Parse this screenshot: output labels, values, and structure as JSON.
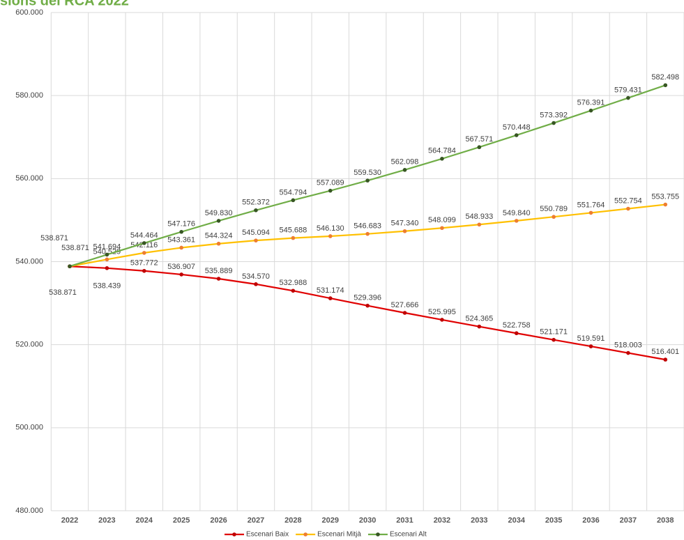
{
  "chart_data": {
    "type": "line",
    "title": "sions del RCA 2022",
    "categories": [
      "2022",
      "2023",
      "2024",
      "2025",
      "2026",
      "2027",
      "2028",
      "2029",
      "2030",
      "2031",
      "2032",
      "2033",
      "2034",
      "2035",
      "2036",
      "2037",
      "2038"
    ],
    "ylim": [
      480000,
      600000
    ],
    "yticks": [
      {
        "value": 480000,
        "label": "480.000"
      },
      {
        "value": 500000,
        "label": "500.000"
      },
      {
        "value": 520000,
        "label": "520.000"
      },
      {
        "value": 540000,
        "label": "540.000"
      },
      {
        "value": 560000,
        "label": "560.000"
      },
      {
        "value": 580000,
        "label": "580.000"
      },
      {
        "value": 600000,
        "label": "600.000"
      }
    ],
    "grid": true,
    "legend": "bottom",
    "series": [
      {
        "name": "Escenari Baix",
        "color": "#e00000",
        "marker_color": "#c00000",
        "values": [
          538871,
          538439,
          537772,
          536907,
          535889,
          534570,
          532988,
          531174,
          529396,
          527666,
          525995,
          524365,
          522758,
          521171,
          519591,
          518003,
          516401
        ],
        "value_labels": [
          "538.871",
          "538.439",
          "537.772",
          "536.907",
          "535.889",
          "534.570",
          "532.988",
          "531.174",
          "529.396",
          "527.666",
          "525.995",
          "524.365",
          "522.758",
          "521.171",
          "519.591",
          "518.003",
          "516.401"
        ]
      },
      {
        "name": "Escenari Mitjà",
        "color": "#ffc000",
        "marker_color": "#ed7d31",
        "values": [
          538871,
          540529,
          542116,
          543361,
          544324,
          545094,
          545688,
          546130,
          546683,
          547340,
          548099,
          548933,
          549840,
          550789,
          551764,
          552754,
          553755
        ],
        "value_labels": [
          "538.871",
          "540.529",
          "542.116",
          "543.361",
          "544.324",
          "545.094",
          "545.688",
          "546.130",
          "546.683",
          "547.340",
          "548.099",
          "548.933",
          "549.840",
          "550.789",
          "551.764",
          "552.754",
          "553.755"
        ]
      },
      {
        "name": "Escenari Alt",
        "color": "#70ad47",
        "marker_color": "#375623",
        "values": [
          538871,
          541694,
          544464,
          547176,
          549830,
          552372,
          554794,
          557089,
          559530,
          562098,
          564784,
          567571,
          570448,
          573392,
          576391,
          579431,
          582498
        ],
        "value_labels": [
          "538.871",
          "541.694",
          "544.464",
          "547.176",
          "549.830",
          "552.372",
          "554.794",
          "557.089",
          "559.530",
          "562.098",
          "564.784",
          "567.571",
          "570.448",
          "573.392",
          "576.391",
          "579.431",
          "582.498"
        ]
      }
    ]
  }
}
